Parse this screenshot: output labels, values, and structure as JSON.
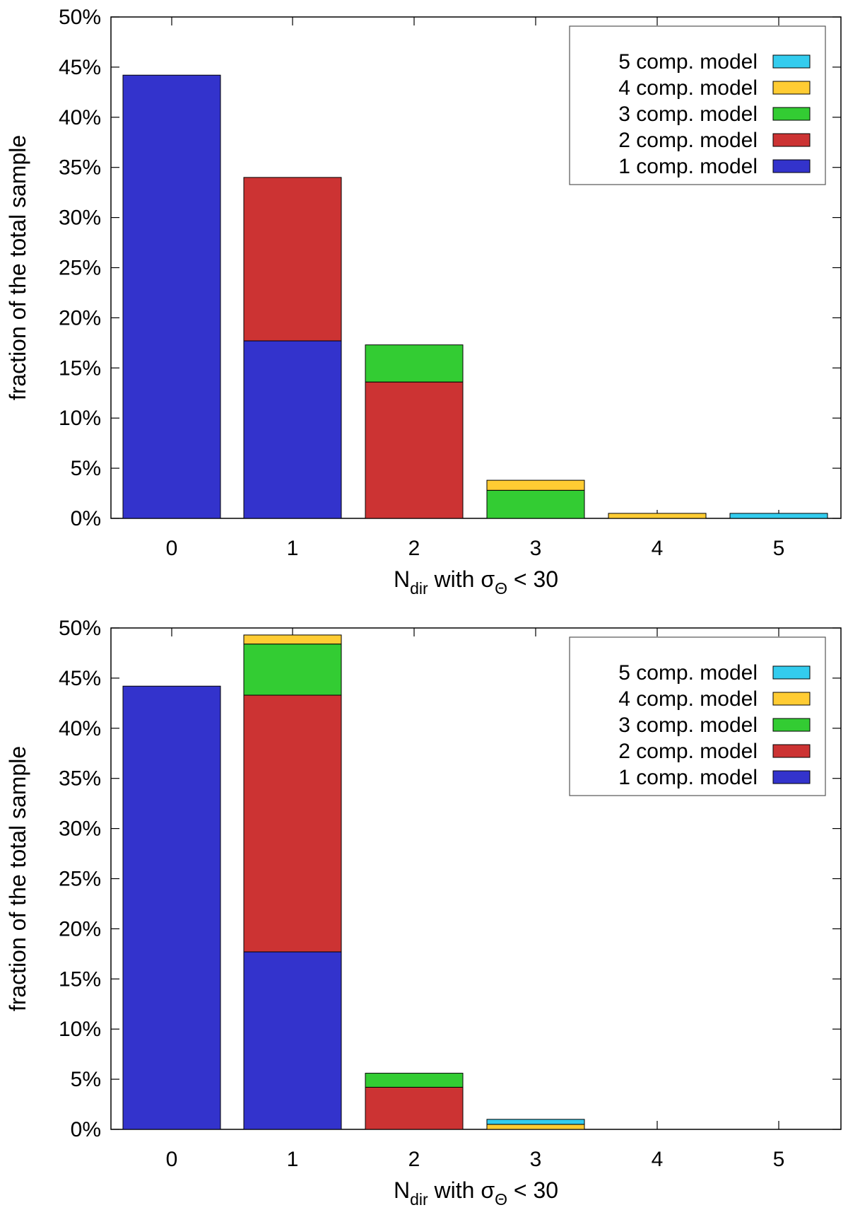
{
  "colors": {
    "1 comp. model": "#3333cc",
    "2 comp. model": "#cc3333",
    "3 comp. model": "#33cc33",
    "4 comp. model": "#ffcc33",
    "5 comp. model": "#33ccee"
  },
  "chart_data": [
    {
      "type": "bar",
      "stacked": true,
      "categories": [
        "0",
        "1",
        "2",
        "3",
        "4",
        "5"
      ],
      "series": [
        {
          "name": "1 comp. model",
          "values": [
            44.2,
            17.7,
            0,
            0,
            0,
            0
          ]
        },
        {
          "name": "2 comp. model",
          "values": [
            0,
            16.3,
            13.6,
            0,
            0,
            0
          ]
        },
        {
          "name": "3 comp. model",
          "values": [
            0,
            0,
            3.7,
            2.8,
            0,
            0
          ]
        },
        {
          "name": "4 comp. model",
          "values": [
            0,
            0,
            0,
            1.0,
            0.5,
            0
          ]
        },
        {
          "name": "5 comp. model",
          "values": [
            0,
            0,
            0,
            0,
            0,
            0.5
          ]
        }
      ],
      "legend_order": [
        "5 comp. model",
        "4 comp. model",
        "3 comp. model",
        "2 comp. model",
        "1 comp. model"
      ],
      "legend_position": "top-right",
      "xlabel": {
        "main": "N",
        "sub": "dir",
        "mid": " with σ",
        "sub2": "Θ",
        "tail": " < 30"
      },
      "ylabel": "fraction of the total sample",
      "ylim": [
        0,
        50
      ],
      "yticks": [
        "0%",
        "5%",
        "10%",
        "15%",
        "20%",
        "25%",
        "30%",
        "35%",
        "40%",
        "45%",
        "50%"
      ],
      "grid": false
    },
    {
      "type": "bar",
      "stacked": true,
      "categories": [
        "0",
        "1",
        "2",
        "3",
        "4",
        "5"
      ],
      "series": [
        {
          "name": "1 comp. model",
          "values": [
            44.2,
            17.7,
            0,
            0,
            0,
            0
          ]
        },
        {
          "name": "2 comp. model",
          "values": [
            0,
            25.6,
            4.2,
            0,
            0,
            0
          ]
        },
        {
          "name": "3 comp. model",
          "values": [
            0,
            5.1,
            1.4,
            0,
            0,
            0
          ]
        },
        {
          "name": "4 comp. model",
          "values": [
            0,
            0.9,
            0,
            0.5,
            0,
            0
          ]
        },
        {
          "name": "5 comp. model",
          "values": [
            0,
            0,
            0,
            0.5,
            0,
            0
          ]
        }
      ],
      "legend_order": [
        "5 comp. model",
        "4 comp. model",
        "3 comp. model",
        "2 comp. model",
        "1 comp. model"
      ],
      "legend_position": "top-right",
      "xlabel": {
        "main": "N",
        "sub": "dir",
        "mid": " with σ",
        "sub2": "Θ",
        "tail": " < 30"
      },
      "ylabel": "fraction of the total sample",
      "ylim": [
        0,
        50
      ],
      "yticks": [
        "0%",
        "5%",
        "10%",
        "15%",
        "20%",
        "25%",
        "30%",
        "35%",
        "40%",
        "45%",
        "50%"
      ],
      "grid": false
    }
  ]
}
